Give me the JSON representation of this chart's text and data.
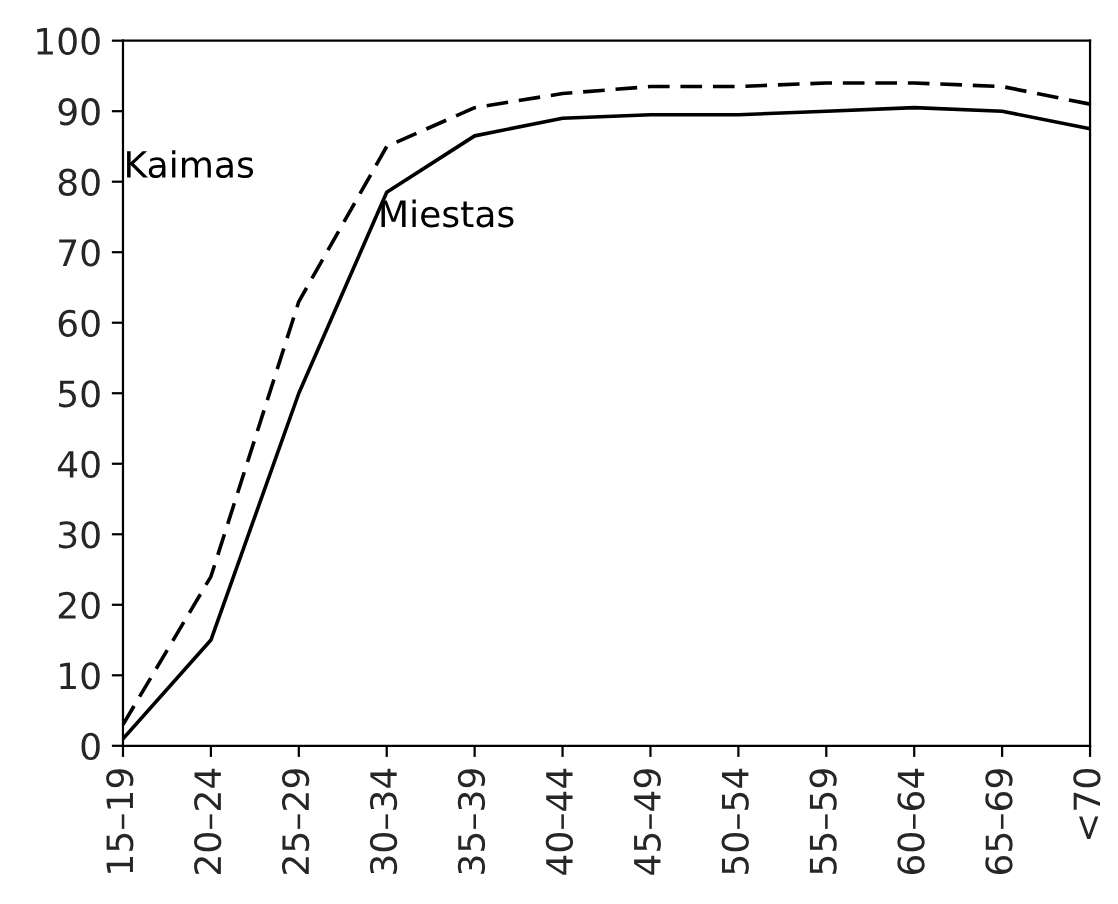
{
  "chart_data": {
    "type": "line",
    "categories": [
      "15–19",
      "20–24",
      "25–29",
      "30–34",
      "35–39",
      "40–44",
      "45–49",
      "50–54",
      "55–59",
      "60–64",
      "65–69",
      "<70"
    ],
    "series": [
      {
        "name": "Kaimas",
        "color": "#000000",
        "line_style": "dashed",
        "values": [
          3,
          24,
          63,
          85,
          90.5,
          92.5,
          93.5,
          93.5,
          94,
          94,
          93.5,
          91
        ]
      },
      {
        "name": "Miestas",
        "color": "#000000",
        "line_style": "solid",
        "values": [
          1,
          15,
          50,
          78.5,
          86.5,
          89,
          89.5,
          89.5,
          90,
          90.5,
          90,
          87.5
        ]
      }
    ],
    "ylim": [
      0,
      100
    ],
    "yticks": [
      0,
      10,
      20,
      30,
      40,
      50,
      60,
      70,
      80,
      90,
      100
    ],
    "grid": false,
    "legend": false,
    "marker": "none"
  }
}
